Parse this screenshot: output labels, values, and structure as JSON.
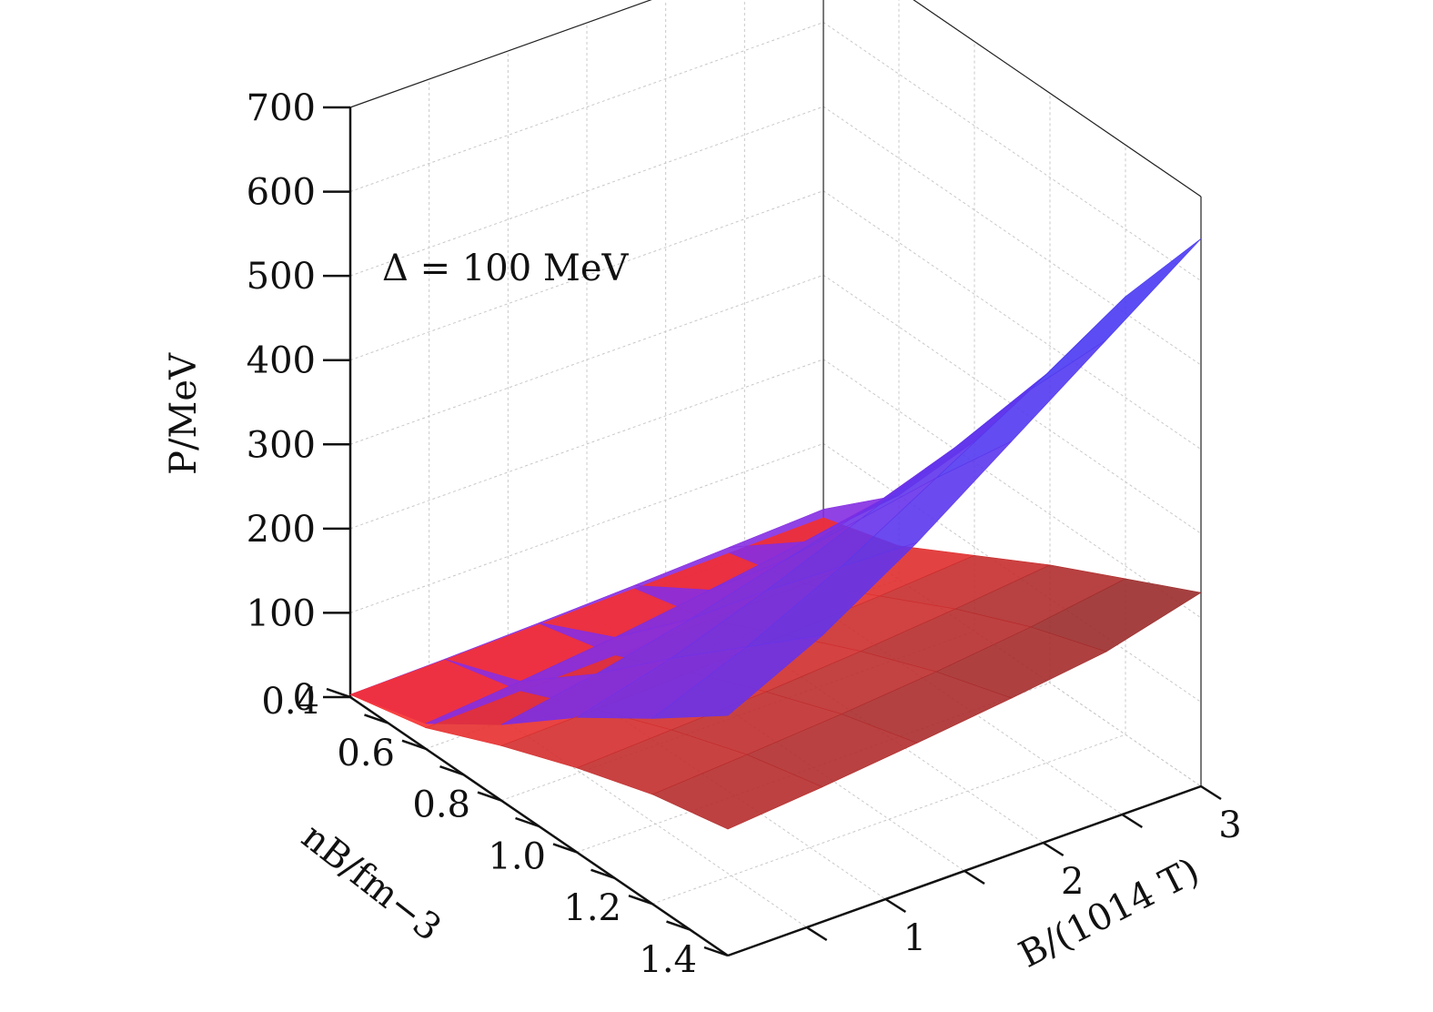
{
  "chart_data": {
    "type": "surface3d",
    "annotation": "Δ = 100 MeV",
    "z_axis": {
      "label": "P/MeV",
      "ticks": [
        "0",
        "100",
        "200",
        "300",
        "400",
        "500",
        "600",
        "700"
      ],
      "range": [
        0,
        700
      ]
    },
    "y_axis": {
      "label": "n_B/fm^-3",
      "label_display": "nB/fm−3",
      "ticks": [
        "0.4",
        "0.6",
        "0.8",
        "1.0",
        "1.2",
        "1.4"
      ],
      "range": [
        0.4,
        1.4
      ]
    },
    "x_axis": {
      "label": "B/(10^14 T)",
      "label_display": "B/(1014 T)",
      "ticks": [
        "1",
        "2",
        "3"
      ],
      "range": [
        0,
        3
      ]
    },
    "grid": true,
    "series": [
      {
        "color_low": "#8b2be0",
        "color_high": "#3d3df5",
        "n": [
          0.4,
          0.6,
          0.8,
          1.0,
          1.2,
          1.4
        ],
        "B": [
          0,
          0.6,
          1.2,
          1.8,
          2.4,
          3.0
        ],
        "P": [
          [
            3,
            5,
            8,
            12,
            17,
            22
          ],
          [
            30,
            40,
            52,
            68,
            85,
            100
          ],
          [
            90,
            110,
            135,
            165,
            195,
            225
          ],
          [
            160,
            190,
            230,
            275,
            320,
            370
          ],
          [
            220,
            265,
            320,
            385,
            450,
            520
          ],
          [
            285,
            340,
            410,
            490,
            570,
            650
          ]
        ]
      },
      {
        "color_low": "#ff3030",
        "color_high": "#8a2a2a",
        "n": [
          0.4,
          0.6,
          0.8,
          1.0,
          1.2,
          1.4
        ],
        "B": [
          0,
          0.6,
          1.2,
          1.8,
          2.4,
          3.0
        ],
        "P": [
          [
            3,
            4,
            6,
            8,
            10,
            12
          ],
          [
            25,
            28,
            30,
            32,
            35,
            40
          ],
          [
            65,
            68,
            72,
            76,
            82,
            90
          ],
          [
            100,
            105,
            110,
            118,
            128,
            140
          ],
          [
            130,
            137,
            145,
            155,
            168,
            185
          ],
          [
            150,
            160,
            172,
            185,
            200,
            230
          ]
        ]
      }
    ]
  }
}
